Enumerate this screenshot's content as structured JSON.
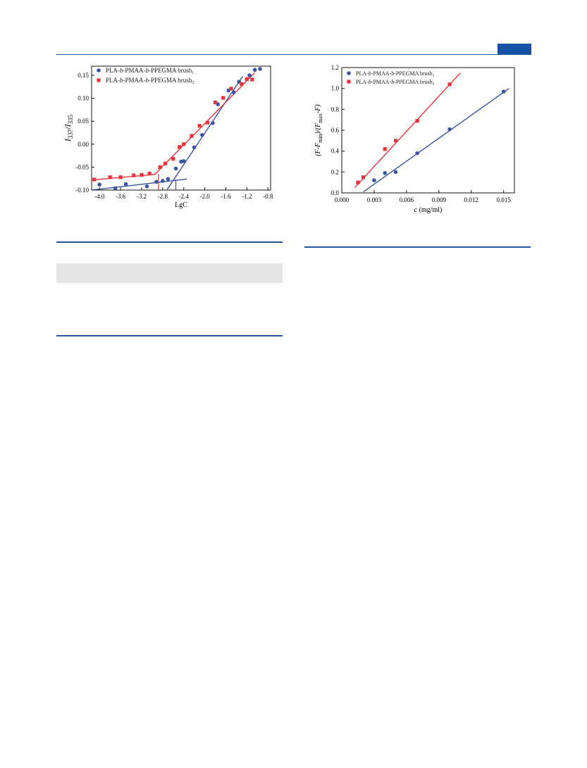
{
  "page": {
    "accent": "#1552a3",
    "band_color": "#e6e6e6"
  },
  "chart_data": [
    {
      "type": "scatter",
      "title": "",
      "xlabel": "LgC",
      "ylabel_parts": [
        "I",
        "337",
        "/",
        "I",
        "335"
      ],
      "xlim": [
        -4.15,
        -0.75
      ],
      "ylim": [
        -0.1,
        0.17
      ],
      "xticks": [
        "-4.0",
        "-3.6",
        "-3.2",
        "-2.8",
        "-2.4",
        "-2.0",
        "-1.6",
        "-1.2",
        "-0.8"
      ],
      "yticks": [
        "-0.10",
        "-0.05",
        "0.00",
        "0.05",
        "0.10",
        "0.15"
      ],
      "grid": false,
      "legend_position": "top-left",
      "series": [
        {
          "name_parts": [
            "PLA-",
            "b",
            "-PMAA-",
            "b",
            "-PPEGMA brush",
            "1"
          ],
          "color": "#3a55a4",
          "marker": "circle",
          "x": [
            -4.0,
            -3.7,
            -3.5,
            -3.1,
            -2.92,
            -2.8,
            -2.7,
            -2.55,
            -2.45,
            -2.4,
            -2.2,
            -2.05,
            -1.85,
            -1.75,
            -1.55,
            -1.45,
            -1.35,
            -1.15,
            -1.05,
            -0.95
          ],
          "y": [
            -0.088,
            -0.096,
            -0.087,
            -0.092,
            -0.082,
            -0.08,
            -0.076,
            -0.053,
            -0.038,
            -0.037,
            -0.007,
            0.02,
            0.046,
            0.087,
            0.117,
            0.113,
            0.136,
            0.15,
            0.162,
            0.164
          ]
        },
        {
          "name_parts": [
            "PLA-",
            "b",
            "-PMAA-",
            "b",
            "-PPEGMA brush",
            "2"
          ],
          "color": "#e8333b",
          "marker": "square",
          "x": [
            -4.1,
            -3.8,
            -3.6,
            -3.35,
            -3.2,
            -3.05,
            -2.85,
            -2.75,
            -2.6,
            -2.48,
            -2.4,
            -2.25,
            -2.1,
            -1.95,
            -1.8,
            -1.65,
            -1.5,
            -1.3,
            -1.2,
            -1.1
          ],
          "y": [
            -0.077,
            -0.072,
            -0.072,
            -0.068,
            -0.067,
            -0.064,
            -0.05,
            -0.042,
            -0.032,
            -0.006,
            0.0,
            0.018,
            0.04,
            0.047,
            0.091,
            0.101,
            0.121,
            0.131,
            0.142,
            0.141
          ]
        }
      ],
      "fit_lines": [
        {
          "color": "#3a55a4",
          "from": [
            -4.15,
            -0.1
          ],
          "to": [
            -2.34,
            -0.076
          ]
        },
        {
          "color": "#3a55a4",
          "from": [
            -2.78,
            -0.11
          ],
          "to": [
            -1.28,
            0.148
          ]
        },
        {
          "color": "#e8333b",
          "from": [
            -4.15,
            -0.078
          ],
          "to": [
            -2.95,
            -0.066
          ]
        },
        {
          "color": "#e8333b",
          "from": [
            -2.95,
            -0.066
          ],
          "to": [
            -1.05,
            0.156
          ]
        }
      ],
      "guide_lines": [
        {
          "color": "#e8333b",
          "x": -2.88,
          "y_from": -0.1,
          "y_to": -0.065
        },
        {
          "color": "#3a55a4",
          "x": -2.55,
          "y_from": -0.1,
          "y_to": -0.077
        }
      ]
    },
    {
      "type": "scatter",
      "title": "",
      "xlabel_parts": [
        "c",
        " (mg/ml)"
      ],
      "ylabel_parts": [
        "(F-F",
        "min",
        ")/(F",
        "max",
        "-F)"
      ],
      "xlim": [
        0.0,
        0.016
      ],
      "ylim": [
        0.0,
        1.2
      ],
      "xticks": [
        "0.000",
        "0.003",
        "0.006",
        "0.009",
        "0.012",
        "0.015"
      ],
      "yticks": [
        "0.0",
        "0.2",
        "0.4",
        "0.6",
        "0.8",
        "1.0",
        "1.2"
      ],
      "grid": false,
      "legend_position": "top-left",
      "series": [
        {
          "name_parts": [
            "PLA-",
            "b",
            "-PMAA-",
            "b",
            "-PPEGMA brush",
            "1"
          ],
          "color": "#3a55a4",
          "marker": "circle",
          "x": [
            0.003,
            0.004,
            0.005,
            0.007,
            0.01,
            0.015
          ],
          "y": [
            0.12,
            0.19,
            0.2,
            0.38,
            0.61,
            0.97
          ]
        },
        {
          "name_parts": [
            "PLA-",
            "b",
            "-PMAA-",
            "b",
            "-PPEGMA brush",
            "2"
          ],
          "color": "#e8333b",
          "marker": "square",
          "x": [
            0.0015,
            0.002,
            0.004,
            0.005,
            0.007,
            0.01
          ],
          "y": [
            0.1,
            0.15,
            0.42,
            0.5,
            0.69,
            1.04
          ]
        }
      ],
      "fit_lines": [
        {
          "color": "#3a55a4",
          "from": [
            0.002,
            0.01
          ],
          "to": [
            0.0155,
            1.0
          ]
        },
        {
          "color": "#e8333b",
          "from": [
            0.0012,
            0.05
          ],
          "to": [
            0.011,
            1.15
          ]
        }
      ]
    }
  ]
}
